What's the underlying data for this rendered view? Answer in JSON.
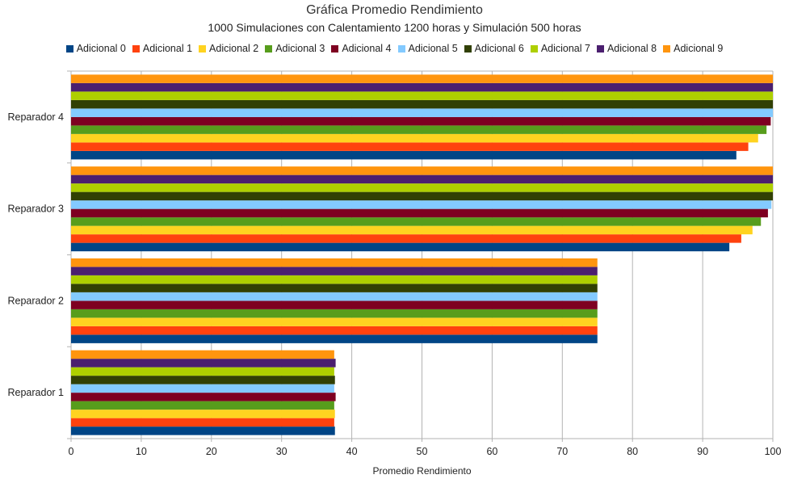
{
  "chart_data": {
    "type": "bar",
    "orientation": "horizontal",
    "title": "Gráfica Promedio Rendimiento",
    "subtitle": "1000 Simulaciones con Calentamiento 1200 horas y Simulación 500 horas",
    "xlabel": "Promedio Rendimiento",
    "ylabel": "",
    "xlim": [
      0,
      100
    ],
    "x_ticks": [
      0,
      10,
      20,
      30,
      40,
      50,
      60,
      70,
      80,
      90,
      100
    ],
    "grid": true,
    "legend_position": "top",
    "categories": [
      "Reparador 1",
      "Reparador 2",
      "Reparador 3",
      "Reparador 4"
    ],
    "series": [
      {
        "name": "Adicional 0",
        "color": "#004586",
        "values": [
          37.6,
          75.0,
          93.8,
          94.8
        ]
      },
      {
        "name": "Adicional 1",
        "color": "#ff420e",
        "values": [
          37.5,
          75.0,
          95.5,
          96.5
        ]
      },
      {
        "name": "Adicional 2",
        "color": "#ffd320",
        "values": [
          37.6,
          75.0,
          97.1,
          97.9
        ]
      },
      {
        "name": "Adicional 3",
        "color": "#579d1c",
        "values": [
          37.5,
          75.0,
          98.3,
          99.1
        ]
      },
      {
        "name": "Adicional 4",
        "color": "#7e0021",
        "values": [
          37.7,
          75.0,
          99.3,
          99.7
        ]
      },
      {
        "name": "Adicional 5",
        "color": "#83caff",
        "values": [
          37.5,
          75.0,
          99.8,
          100
        ]
      },
      {
        "name": "Adicional 6",
        "color": "#314004",
        "values": [
          37.6,
          75.0,
          100,
          100
        ]
      },
      {
        "name": "Adicional 7",
        "color": "#aecf00",
        "values": [
          37.5,
          75.0,
          100,
          100
        ]
      },
      {
        "name": "Adicional 8",
        "color": "#4b1f6f",
        "values": [
          37.7,
          75.0,
          100,
          100
        ]
      },
      {
        "name": "Adicional 9",
        "color": "#ff950e",
        "values": [
          37.5,
          75.0,
          100,
          100
        ]
      }
    ]
  }
}
